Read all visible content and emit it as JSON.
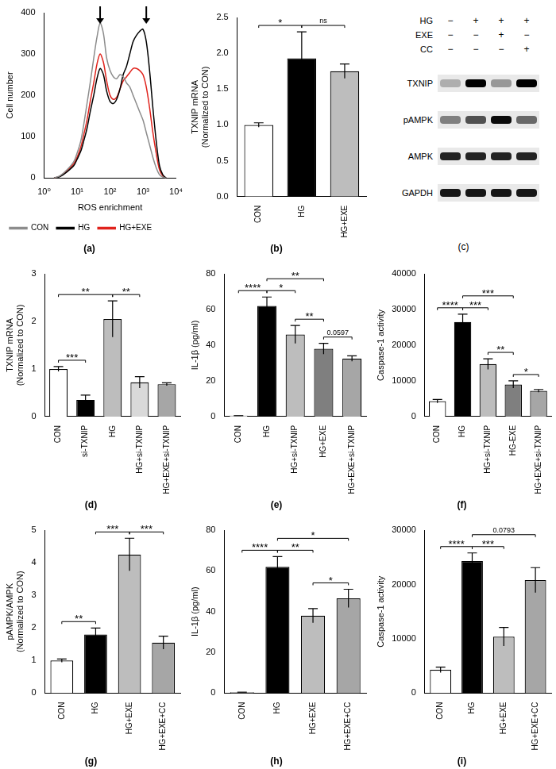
{
  "chart_data": [
    {
      "type": "line",
      "title": "(a)",
      "x_label": "ROS enrichment",
      "y_label": "Cell number",
      "log": "x",
      "grid": false,
      "legend": "bottom",
      "x": [
        2,
        3,
        5,
        8,
        10,
        13,
        16,
        20,
        25,
        32,
        40,
        50,
        63,
        79,
        100,
        126,
        158,
        200,
        251,
        316,
        398,
        501,
        631,
        794,
        1000,
        1259,
        1585,
        1995,
        2512,
        3162,
        3981,
        5012
      ],
      "series": [
        {
          "name": "CON",
          "color": "#8c8c8c",
          "values": [
            0,
            5,
            20,
            40,
            60,
            90,
            130,
            180,
            230,
            290,
            340,
            375,
            350,
            290,
            260,
            245,
            240,
            250,
            245,
            230,
            220,
            200,
            180,
            160,
            140,
            110,
            80,
            50,
            25,
            8,
            2,
            0
          ]
        },
        {
          "name": "HG",
          "color": "#000000",
          "values": [
            0,
            3,
            15,
            30,
            45,
            65,
            90,
            120,
            160,
            200,
            240,
            265,
            250,
            210,
            185,
            180,
            190,
            215,
            250,
            270,
            300,
            330,
            345,
            355,
            360,
            330,
            260,
            170,
            90,
            30,
            8,
            0
          ]
        },
        {
          "name": "HG+EXE",
          "color": "#e0231c",
          "values": [
            0,
            4,
            18,
            35,
            50,
            75,
            105,
            140,
            185,
            230,
            275,
            300,
            280,
            235,
            200,
            190,
            195,
            215,
            235,
            245,
            255,
            265,
            265,
            260,
            250,
            220,
            170,
            110,
            60,
            20,
            5,
            0
          ]
        }
      ],
      "arrows": [
        50,
        1259
      ],
      "xlim": [
        1,
        10000
      ],
      "xticks": [
        {
          "value": 1,
          "label": "10⁰"
        },
        {
          "value": 10,
          "label": "10¹"
        },
        {
          "value": 100,
          "label": "10²"
        },
        {
          "value": 1000,
          "label": "10³"
        },
        {
          "value": 10000,
          "label": "10⁴"
        }
      ],
      "ylim": [
        0,
        400
      ],
      "yticks": [
        0,
        100,
        200,
        300,
        400
      ]
    },
    {
      "type": "bar",
      "title": "(b)",
      "y_label": [
        "TXNIP mRNA",
        "(Normalized to CON)"
      ],
      "grid": false,
      "categories": [
        "CON",
        "HG",
        "HG+EXE"
      ],
      "values": [
        1.0,
        1.93,
        1.75
      ],
      "errors": [
        0.03,
        0.37,
        0.1
      ],
      "colors": [
        "#ffffff",
        "#000000",
        "#bdbdbd"
      ],
      "annotations": [
        {
          "from": "CON",
          "to": "HG",
          "label": "*"
        },
        {
          "from": "HG",
          "to": "HG+EXE",
          "label": "ns"
        }
      ],
      "ylim": [
        0,
        2.5
      ],
      "yticks": [
        {
          "value": 0,
          "label": "0.0"
        },
        {
          "value": 0.5,
          "label": "0.5"
        },
        {
          "value": 1,
          "label": "1.0"
        },
        {
          "value": 1.5,
          "label": "1.5"
        },
        {
          "value": 2,
          "label": "2.0"
        },
        {
          "value": 2.5,
          "label": "2.5"
        }
      ]
    },
    {
      "type": "blot",
      "title": "(c)",
      "conditions": [
        {
          "name": "HG",
          "values": [
            "−",
            "+",
            "+",
            "+"
          ]
        },
        {
          "name": "EXE",
          "values": [
            "−",
            "−",
            "+",
            "−"
          ]
        },
        {
          "name": "CC",
          "values": [
            "−",
            "−",
            "−",
            "+"
          ]
        }
      ],
      "bands": [
        {
          "name": "TXNIP",
          "values": [
            0.25,
            1.0,
            0.35,
            1.0
          ]
        },
        {
          "name": "pAMPK",
          "values": [
            0.45,
            0.65,
            0.95,
            0.55
          ]
        },
        {
          "name": "AMPK",
          "values": [
            0.85,
            0.85,
            0.85,
            0.85
          ]
        },
        {
          "name": "GAPDH",
          "values": [
            0.9,
            0.9,
            0.9,
            0.9
          ]
        }
      ]
    },
    {
      "type": "bar",
      "title": "(d)",
      "y_label": [
        "TXNIP mRNA",
        "(Normalized to CON)"
      ],
      "grid": false,
      "categories": [
        "CON",
        "si-TXNIP",
        "HG",
        "HG+si-TXNIP",
        "HG+EXE+si-TXNIP"
      ],
      "values": [
        1.0,
        0.35,
        2.05,
        0.72,
        0.68
      ],
      "errors": [
        0.05,
        0.1,
        0.38,
        0.12,
        0.03
      ],
      "colors": [
        "#ffffff",
        "#000000",
        "#bdbdbd",
        "#d9d9d9",
        "#a6a6a6"
      ],
      "annotations": [
        {
          "from": "CON",
          "to": "si-TXNIP",
          "label": "***"
        },
        {
          "from": "HG",
          "to": "HG+si-TXNIP",
          "label": "**"
        },
        {
          "from": "CON",
          "to": "HG",
          "label": "**"
        }
      ],
      "ylim": [
        0,
        3
      ],
      "yticks": [
        0,
        1,
        2,
        3
      ]
    },
    {
      "type": "bar",
      "title": "(e)",
      "y_label": "IL-1β (pg/ml)",
      "grid": false,
      "categories": [
        "CON",
        "HG",
        "HG+si-TXNIP",
        "HG+EXE",
        "HG+EXE+si-TXNIP"
      ],
      "values": [
        0.5,
        62,
        46,
        38,
        32.5
      ],
      "errors": [
        0,
        5,
        5,
        3,
        1.5
      ],
      "colors": [
        "#ffffff",
        "#000000",
        "#bdbdbd",
        "#7f7f7f",
        "#a6a6a6"
      ],
      "annotations": [
        {
          "from": "CON",
          "to": "HG",
          "label": "****"
        },
        {
          "from": "HG",
          "to": "HG+si-TXNIP",
          "label": "*"
        },
        {
          "from": "HG+si-TXNIP",
          "to": "HG+EXE",
          "label": "**"
        },
        {
          "from": "HG+EXE",
          "to": "HG+EXE+si-TXNIP",
          "label": "0.0597"
        },
        {
          "from": "HG",
          "to": "HG+EXE",
          "label": "**"
        }
      ],
      "ylim": [
        0,
        80
      ],
      "yticks": [
        0,
        20,
        40,
        60,
        80
      ]
    },
    {
      "type": "bar",
      "title": "(f)",
      "y_label": "Caspase-1 activity",
      "grid": false,
      "categories": [
        "CON",
        "HG",
        "HG+si-TXNIP",
        "HG-EXE",
        "HG+EXE+si-TXNIP"
      ],
      "values": [
        4300,
        26500,
        14700,
        9000,
        7200
      ],
      "errors": [
        500,
        2200,
        1500,
        1000,
        400
      ],
      "colors": [
        "#ffffff",
        "#000000",
        "#bdbdbd",
        "#7f7f7f",
        "#a6a6a6"
      ],
      "annotations": [
        {
          "from": "CON",
          "to": "HG",
          "label": "****"
        },
        {
          "from": "HG",
          "to": "HG+si-TXNIP",
          "label": "***"
        },
        {
          "from": "HG+si-TXNIP",
          "to": "HG-EXE",
          "label": "**"
        },
        {
          "from": "HG-EXE",
          "to": "HG+EXE+si-TXNIP",
          "label": "*"
        },
        {
          "from": "HG",
          "to": "HG-EXE",
          "label": "***"
        }
      ],
      "ylim": [
        0,
        40000
      ],
      "yticks": [
        0,
        10000,
        20000,
        30000,
        40000
      ]
    },
    {
      "type": "bar",
      "title": "(g)",
      "y_label": [
        "pAMPK/AMPK",
        "(Normalized to CON)"
      ],
      "grid": false,
      "categories": [
        "CON",
        "HG",
        "HG+EXE",
        "HG+EXE+CC"
      ],
      "values": [
        1.0,
        1.8,
        4.25,
        1.55
      ],
      "errors": [
        0.05,
        0.2,
        0.5,
        0.2
      ],
      "colors": [
        "#ffffff",
        "#000000",
        "#bdbdbd",
        "#a6a6a6"
      ],
      "annotations": [
        {
          "from": "CON",
          "to": "HG",
          "label": "**"
        },
        {
          "from": "HG",
          "to": "HG+EXE",
          "label": "***"
        },
        {
          "from": "HG+EXE",
          "to": "HG+EXE+CC",
          "label": "***"
        }
      ],
      "ylim": [
        0,
        5
      ],
      "yticks": [
        0,
        1,
        2,
        3,
        4,
        5
      ]
    },
    {
      "type": "bar",
      "title": "(h)",
      "y_label": "IL-1β (pg/ml)",
      "grid": false,
      "categories": [
        "CON",
        "HG",
        "HG+EXE",
        "HG+EXE+CC"
      ],
      "values": [
        0.5,
        62,
        38,
        46.5
      ],
      "errors": [
        0,
        5,
        3.5,
        4.5
      ],
      "colors": [
        "#ffffff",
        "#000000",
        "#bdbdbd",
        "#a6a6a6"
      ],
      "annotations": [
        {
          "from": "CON",
          "to": "HG",
          "label": "****"
        },
        {
          "from": "HG",
          "to": "HG+EXE",
          "label": "**"
        },
        {
          "from": "HG+EXE",
          "to": "HG+EXE+CC",
          "label": "*"
        },
        {
          "from": "HG",
          "to": "HG+EXE+CC",
          "label": "*"
        }
      ],
      "ylim": [
        0,
        80
      ],
      "yticks": [
        0,
        20,
        40,
        60,
        80
      ]
    },
    {
      "type": "bar",
      "title": "(i)",
      "y_label": "Caspase-1 activity",
      "grid": false,
      "categories": [
        "CON",
        "HG",
        "HG+EXE",
        "HG+EXE+CC"
      ],
      "values": [
        4300,
        24300,
        10400,
        20800
      ],
      "errors": [
        500,
        1500,
        1700,
        2300
      ],
      "colors": [
        "#ffffff",
        "#000000",
        "#bdbdbd",
        "#a6a6a6"
      ],
      "annotations": [
        {
          "from": "CON",
          "to": "HG",
          "label": "****"
        },
        {
          "from": "HG",
          "to": "HG+EXE",
          "label": "***"
        },
        {
          "from": "HG",
          "to": "HG+EXE+CC",
          "label": "0.0793"
        }
      ],
      "ylim": [
        0,
        30000
      ],
      "yticks": [
        0,
        10000,
        20000,
        30000
      ]
    }
  ]
}
